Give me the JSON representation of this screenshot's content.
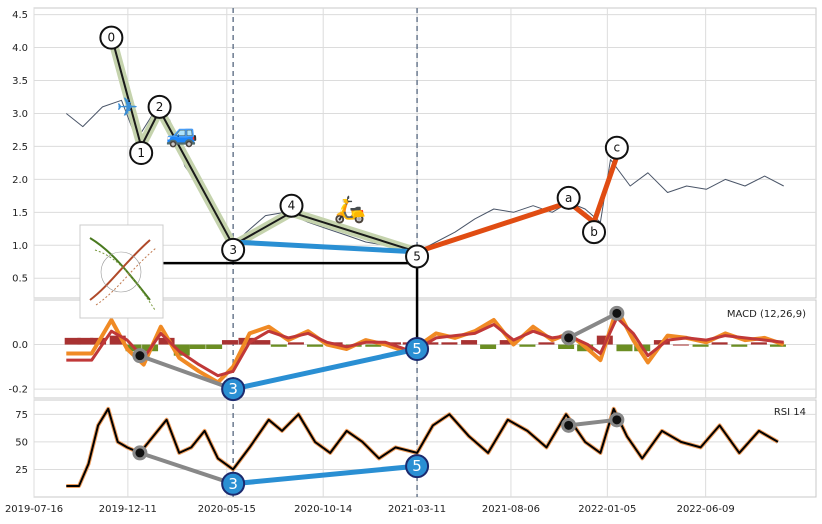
{
  "chart_data": [
    {
      "type": "line",
      "panel": "price",
      "ylim": [
        0.2,
        4.6
      ],
      "yticks": [
        "0.5",
        "1.0",
        "1.5",
        "2.0",
        "2.5",
        "3.0",
        "3.5",
        "4.0",
        "4.5"
      ],
      "series": [
        {
          "style": "thin-price",
          "color": "#4a5568",
          "x": [
            "2019-09-05",
            "2019-10-01",
            "2019-11-01",
            "2019-12-01",
            "2019-12-25",
            "2020-01-20",
            "2020-02-15",
            "2020-03-10",
            "2020-04-01",
            "2020-04-25",
            "2020-05-25",
            "2020-06-15",
            "2020-07-15",
            "2020-08-15",
            "2020-09-20",
            "2020-10-20",
            "2020-11-20",
            "2020-12-20",
            "2021-01-20",
            "2021-02-15",
            "2021-03-11",
            "2021-04-10",
            "2021-05-10",
            "2021-06-10",
            "2021-07-10",
            "2021-08-10",
            "2021-09-10",
            "2021-10-10",
            "2021-11-05",
            "2021-12-01",
            "2021-12-25",
            "2022-01-10",
            "2022-02-10",
            "2022-03-10",
            "2022-04-10",
            "2022-05-10",
            "2022-06-10",
            "2022-07-10",
            "2022-08-10",
            "2022-09-10",
            "2022-10-10"
          ],
          "values": [
            3.0,
            2.8,
            3.1,
            3.2,
            2.6,
            3.0,
            2.9,
            2.2,
            1.9,
            1.6,
            1.0,
            1.2,
            1.45,
            1.5,
            1.35,
            1.25,
            1.15,
            1.05,
            1.0,
            0.95,
            0.9,
            1.05,
            1.2,
            1.4,
            1.55,
            1.5,
            1.6,
            1.5,
            1.65,
            1.55,
            1.35,
            2.3,
            1.9,
            2.1,
            1.8,
            1.9,
            1.85,
            2.0,
            1.9,
            2.05,
            1.9
          ]
        }
      ],
      "wave_labels": [
        {
          "label": "0",
          "x": "2019-11-15",
          "y": 4.15
        },
        {
          "label": "1",
          "x": "2020-01-01",
          "y": 2.4
        },
        {
          "label": "2",
          "x": "2020-01-30",
          "y": 3.1
        },
        {
          "label": "3",
          "x": "2020-05-25",
          "y": 0.93
        },
        {
          "label": "4",
          "x": "2020-08-25",
          "y": 1.6
        },
        {
          "label": "5",
          "x": "2021-03-11",
          "y": 0.83
        },
        {
          "label": "a",
          "x": "2021-11-05",
          "y": 1.72
        },
        {
          "label": "b",
          "x": "2021-12-15",
          "y": 1.2
        },
        {
          "label": "c",
          "x": "2022-01-20",
          "y": 2.48
        }
      ],
      "impulse_path": [
        {
          "x": "2019-11-20",
          "y": 4.0
        },
        {
          "x": "2020-01-01",
          "y": 2.5
        },
        {
          "x": "2020-01-30",
          "y": 3.05
        },
        {
          "x": "2020-05-25",
          "y": 1.0
        },
        {
          "x": "2020-08-25",
          "y": 1.5
        },
        {
          "x": "2021-03-11",
          "y": 0.9
        }
      ],
      "correction_path": [
        {
          "x": "2021-03-11",
          "y": 0.9
        },
        {
          "x": "2021-11-05",
          "y": 1.65
        },
        {
          "x": "2021-12-15",
          "y": 1.35
        },
        {
          "x": "2022-01-20",
          "y": 2.35
        }
      ],
      "divergence_line": [
        {
          "x": "2020-05-25",
          "y": 1.05
        },
        {
          "x": "2021-03-11",
          "y": 0.9
        }
      ],
      "emoji": [
        {
          "icon": "airplane",
          "glyph": "✈",
          "x": "2019-12-10",
          "y": 3.1,
          "color": "#3b8fd6"
        },
        {
          "icon": "car",
          "glyph": "🚙",
          "x": "2020-03-05",
          "y": 2.7,
          "color": "#2f8fe0"
        },
        {
          "icon": "scooter",
          "glyph": "🛵",
          "x": "2020-11-25",
          "y": 1.55,
          "color": "#e58a2b"
        }
      ]
    },
    {
      "type": "line",
      "panel": "macd",
      "title": "MACD (12,26,9)",
      "ylim": [
        -0.24,
        0.2
      ],
      "yticks": [
        "-0.2",
        "0.0"
      ],
      "series": [
        {
          "style": "macd",
          "color": "#f08a24",
          "x": [
            "2019-09-05",
            "2019-10-15",
            "2019-11-15",
            "2019-12-10",
            "2020-01-05",
            "2020-02-01",
            "2020-03-01",
            "2020-04-01",
            "2020-05-01",
            "2020-05-25",
            "2020-06-20",
            "2020-07-20",
            "2020-08-20",
            "2020-09-20",
            "2020-10-20",
            "2020-11-20",
            "2020-12-20",
            "2021-01-20",
            "2021-02-20",
            "2021-03-11",
            "2021-04-10",
            "2021-05-10",
            "2021-06-10",
            "2021-07-10",
            "2021-08-10",
            "2021-09-10",
            "2021-10-10",
            "2021-11-05",
            "2021-12-05",
            "2021-12-25",
            "2022-01-20",
            "2022-02-15",
            "2022-03-10",
            "2022-04-10",
            "2022-05-10",
            "2022-06-10",
            "2022-07-10",
            "2022-08-10",
            "2022-09-10",
            "2022-10-10"
          ],
          "values": [
            -0.04,
            -0.04,
            0.11,
            -0.02,
            -0.09,
            0.08,
            -0.06,
            -0.12,
            -0.17,
            -0.1,
            0.05,
            0.08,
            0.02,
            0.06,
            0.0,
            -0.02,
            0.02,
            0.0,
            -0.03,
            -0.01,
            0.05,
            0.03,
            0.06,
            0.11,
            0.0,
            0.08,
            0.02,
            0.05,
            -0.02,
            -0.07,
            0.16,
            0.02,
            -0.08,
            0.04,
            0.03,
            0.01,
            0.05,
            0.02,
            0.03,
            0.0
          ]
        },
        {
          "style": "signal",
          "color": "#c03838",
          "x": [
            "2019-09-05",
            "2019-10-15",
            "2019-11-15",
            "2019-12-10",
            "2020-01-05",
            "2020-02-01",
            "2020-03-01",
            "2020-04-01",
            "2020-05-01",
            "2020-05-25",
            "2020-06-20",
            "2020-07-20",
            "2020-08-20",
            "2020-09-20",
            "2020-10-20",
            "2020-11-20",
            "2020-12-20",
            "2021-01-20",
            "2021-02-20",
            "2021-03-11",
            "2021-04-10",
            "2021-05-10",
            "2021-06-10",
            "2021-07-10",
            "2021-08-10",
            "2021-09-10",
            "2021-10-10",
            "2021-11-05",
            "2021-12-05",
            "2021-12-25",
            "2022-01-20",
            "2022-02-15",
            "2022-03-10",
            "2022-04-10",
            "2022-05-10",
            "2022-06-10",
            "2022-07-10",
            "2022-08-10",
            "2022-09-10",
            "2022-10-10"
          ],
          "values": [
            -0.07,
            -0.07,
            0.06,
            0.02,
            -0.06,
            0.05,
            -0.03,
            -0.09,
            -0.14,
            -0.12,
            0.01,
            0.06,
            0.03,
            0.05,
            0.01,
            -0.01,
            0.01,
            0.01,
            -0.02,
            -0.02,
            0.03,
            0.04,
            0.05,
            0.09,
            0.02,
            0.06,
            0.03,
            0.04,
            0.0,
            -0.04,
            0.12,
            0.05,
            -0.05,
            0.02,
            0.03,
            0.02,
            0.04,
            0.03,
            0.02,
            0.01
          ]
        }
      ],
      "histogram": {
        "x": [
          "2019-09-15",
          "2019-10-05",
          "2019-10-25",
          "2019-11-25",
          "2019-12-20",
          "2020-01-15",
          "2020-02-10",
          "2020-03-05",
          "2020-03-30",
          "2020-04-25",
          "2020-05-20",
          "2020-06-15",
          "2020-07-10",
          "2020-08-05",
          "2020-09-01",
          "2020-10-01",
          "2020-11-01",
          "2020-12-01",
          "2021-01-01",
          "2021-02-01",
          "2021-03-01",
          "2021-04-01",
          "2021-05-01",
          "2021-06-01",
          "2021-07-01",
          "2021-08-01",
          "2021-09-01",
          "2021-10-01",
          "2021-11-01",
          "2021-12-01",
          "2022-01-01",
          "2022-02-01",
          "2022-03-01",
          "2022-04-01",
          "2022-05-01",
          "2022-06-01",
          "2022-07-01",
          "2022-08-01",
          "2022-09-01",
          "2022-10-01"
        ],
        "values": [
          0.03,
          0.03,
          0.03,
          0.04,
          -0.03,
          -0.03,
          0.03,
          -0.05,
          -0.02,
          -0.02,
          0.02,
          0.03,
          0.02,
          -0.01,
          0.01,
          -0.01,
          0.01,
          -0.01,
          -0.01,
          0.01,
          0.01,
          0.01,
          0.01,
          0.02,
          -0.02,
          0.02,
          -0.01,
          0.01,
          -0.02,
          -0.03,
          0.04,
          -0.03,
          -0.03,
          0.02,
          0.0,
          -0.01,
          0.01,
          -0.01,
          0.01,
          -0.01
        ]
      },
      "divergence_line": [
        {
          "x": "2020-05-25",
          "y": -0.2
        },
        {
          "x": "2021-03-11",
          "y": -0.02
        }
      ],
      "gray_lines": [
        [
          {
            "x": "2019-12-30",
            "y": -0.05
          },
          {
            "x": "2020-05-25",
            "y": -0.2
          }
        ],
        [
          {
            "x": "2021-11-05",
            "y": 0.03
          },
          {
            "x": "2022-01-20",
            "y": 0.14
          }
        ]
      ],
      "wave_labels": [
        {
          "label": "3",
          "x": "2020-05-25",
          "y": -0.2
        },
        {
          "label": "5",
          "x": "2021-03-11",
          "y": -0.02
        }
      ]
    },
    {
      "type": "line",
      "panel": "rsi",
      "title": "RSI 14",
      "ylim": [
        0,
        88
      ],
      "yticks": [
        "25",
        "50",
        "75"
      ],
      "xticks": [
        "2019-07-16",
        "2019-12-11",
        "2020-05-15",
        "2020-10-14",
        "2021-03-11",
        "2021-08-06",
        "2022-01-05",
        "2022-06-09"
      ],
      "series": [
        {
          "style": "rsi",
          "color": "#000000",
          "x": [
            "2019-09-05",
            "2019-09-25",
            "2019-10-10",
            "2019-10-25",
            "2019-11-10",
            "2019-11-25",
            "2019-12-10",
            "2019-12-30",
            "2020-01-20",
            "2020-02-10",
            "2020-03-01",
            "2020-03-20",
            "2020-04-10",
            "2020-05-01",
            "2020-05-25",
            "2020-06-20",
            "2020-07-20",
            "2020-08-10",
            "2020-09-05",
            "2020-10-01",
            "2020-10-25",
            "2020-11-20",
            "2020-12-15",
            "2021-01-10",
            "2021-02-05",
            "2021-03-11",
            "2021-04-05",
            "2021-05-01",
            "2021-06-01",
            "2021-07-01",
            "2021-08-01",
            "2021-09-01",
            "2021-10-01",
            "2021-11-01",
            "2021-12-01",
            "2021-12-25",
            "2022-01-15",
            "2022-02-05",
            "2022-03-01",
            "2022-04-01",
            "2022-05-01",
            "2022-06-01",
            "2022-07-01",
            "2022-08-01",
            "2022-09-01",
            "2022-10-01"
          ],
          "values": [
            10,
            10,
            30,
            65,
            80,
            50,
            45,
            40,
            55,
            70,
            40,
            45,
            60,
            35,
            25,
            45,
            70,
            60,
            75,
            50,
            40,
            60,
            50,
            35,
            45,
            40,
            65,
            75,
            55,
            40,
            70,
            60,
            45,
            75,
            50,
            40,
            80,
            55,
            35,
            60,
            50,
            45,
            65,
            40,
            60,
            50
          ]
        }
      ],
      "divergence_line": [
        {
          "x": "2020-05-25",
          "y": 12
        },
        {
          "x": "2021-03-11",
          "y": 28
        }
      ],
      "gray_lines": [
        [
          {
            "x": "2019-12-30",
            "y": 40
          },
          {
            "x": "2020-05-25",
            "y": 12
          }
        ],
        [
          {
            "x": "2021-11-05",
            "y": 65
          },
          {
            "x": "2022-01-20",
            "y": 70
          }
        ]
      ],
      "wave_labels": [
        {
          "label": "3",
          "x": "2020-05-25",
          "y": 12
        },
        {
          "label": "5",
          "x": "2021-03-11",
          "y": 28
        }
      ]
    }
  ],
  "vertical_markers": [
    "2020-05-25",
    "2021-03-11"
  ],
  "colors": {
    "impulse": "#c5d3ad",
    "impulse_core": "#1a1a1a",
    "correction": "#e04c12",
    "divergence": "#2a8fd3",
    "gray_line": "#888888",
    "marker": "#6b7a8f",
    "hist_pos": "#a83232",
    "hist_neg": "#6b8e23"
  }
}
